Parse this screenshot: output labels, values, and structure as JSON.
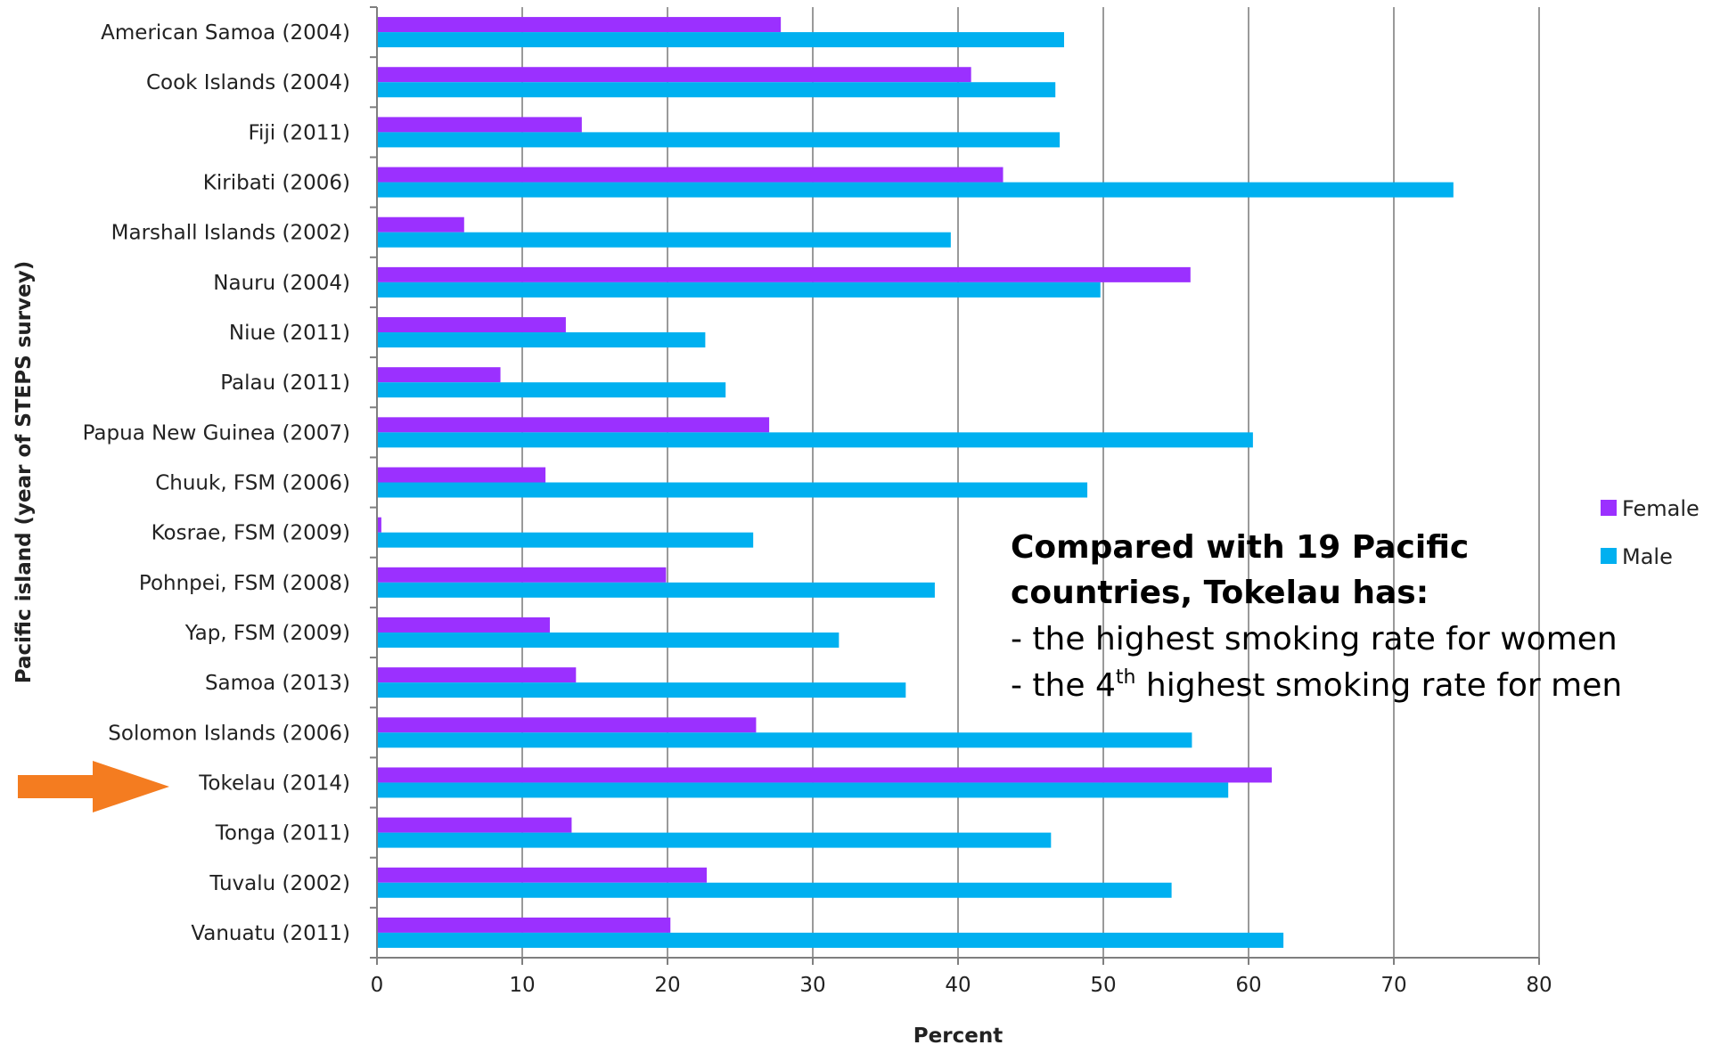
{
  "chart_data": {
    "type": "bar",
    "orientation": "horizontal",
    "ylabel": "Pacific island (year of STEPS survey)",
    "xlabel": "Percent",
    "xlim": [
      0,
      80
    ],
    "xticks": [
      0,
      10,
      20,
      30,
      40,
      50,
      60,
      70,
      80
    ],
    "grid": true,
    "legend_position": "right",
    "categories": [
      "American Samoa (2004)",
      "Cook Islands  (2004)",
      "Fiji (2011)",
      "Kiribati (2006)",
      "Marshall Islands (2002)",
      "Nauru (2004)",
      "Niue (2011)",
      "Palau (2011)",
      "Papua New Guinea (2007)",
      "Chuuk, FSM (2006)",
      "Kosrae, FSM (2009)",
      "Pohnpei, FSM (2008)",
      "Yap, FSM (2009)",
      "Samoa (2013)",
      "Solomon Islands (2006)",
      "Tokelau (2014)",
      "Tonga (2011)",
      "Tuvalu (2002)",
      "Vanuatu (2011)"
    ],
    "series": [
      {
        "name": "Female",
        "color": "#9B30FF",
        "values": [
          27.8,
          40.9,
          14.1,
          43.1,
          6.0,
          56.0,
          13.0,
          8.5,
          27.0,
          11.6,
          0.3,
          19.9,
          11.9,
          13.7,
          26.1,
          61.6,
          13.4,
          22.7,
          20.2
        ]
      },
      {
        "name": "Male",
        "color": "#00B0F0",
        "values": [
          47.3,
          46.7,
          47.0,
          74.1,
          39.5,
          49.8,
          22.6,
          24.0,
          60.3,
          48.9,
          25.9,
          38.4,
          31.8,
          36.4,
          56.1,
          58.6,
          46.4,
          54.7,
          62.4
        ]
      }
    ],
    "highlight_category": "Tokelau (2014)",
    "highlight_color": "#F47C20",
    "annotation": {
      "heading_line1": "Compared with 19 Pacific",
      "heading_line2": "countries, Tokelau has:",
      "bullet1": "- the highest smoking rate for women",
      "bullet2_pre": "- the 4",
      "bullet2_sup": "th",
      "bullet2_post": " highest smoking rate for men"
    }
  }
}
